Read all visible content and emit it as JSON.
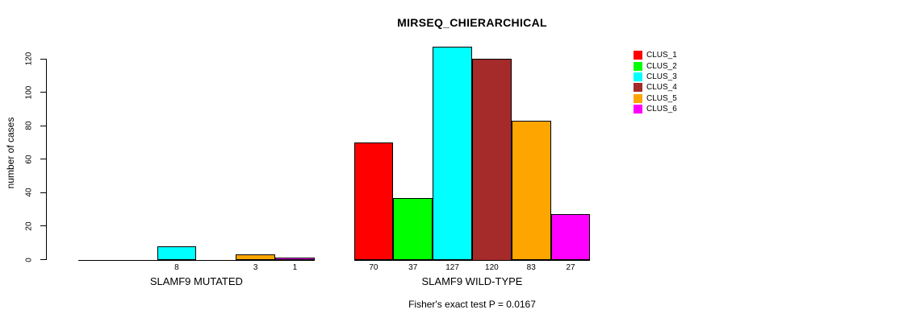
{
  "chart_data": {
    "type": "bar",
    "grouped": true,
    "title": "MIRSEQ_CHIERARCHICAL",
    "xlabel": "",
    "ylabel": "number of cases",
    "annotation": "Fisher's exact test P = 0.0167",
    "y_ticks": [
      0,
      20,
      40,
      60,
      80,
      100,
      120
    ],
    "ylim": [
      0,
      127
    ],
    "grid": false,
    "legend_position": "right",
    "categories": [
      "SLAMF9 MUTATED",
      "SLAMF9 WILD-TYPE"
    ],
    "series": [
      {
        "name": "CLUS_1",
        "color": "#ff0000",
        "values": [
          0,
          70
        ]
      },
      {
        "name": "CLUS_2",
        "color": "#00ff00",
        "values": [
          0,
          37
        ]
      },
      {
        "name": "CLUS_3",
        "color": "#00ffff",
        "values": [
          8,
          127
        ]
      },
      {
        "name": "CLUS_4",
        "color": "#a52a2a",
        "values": [
          0,
          120
        ]
      },
      {
        "name": "CLUS_5",
        "color": "#ffa500",
        "values": [
          3,
          83
        ]
      },
      {
        "name": "CLUS_6",
        "color": "#ff00ff",
        "values": [
          1,
          27
        ]
      }
    ],
    "bar_value_labels": {
      "SLAMF9 MUTATED": [
        8,
        3,
        1
      ],
      "SLAMF9 WILD-TYPE": [
        70,
        37,
        127,
        120,
        83,
        27
      ]
    }
  }
}
